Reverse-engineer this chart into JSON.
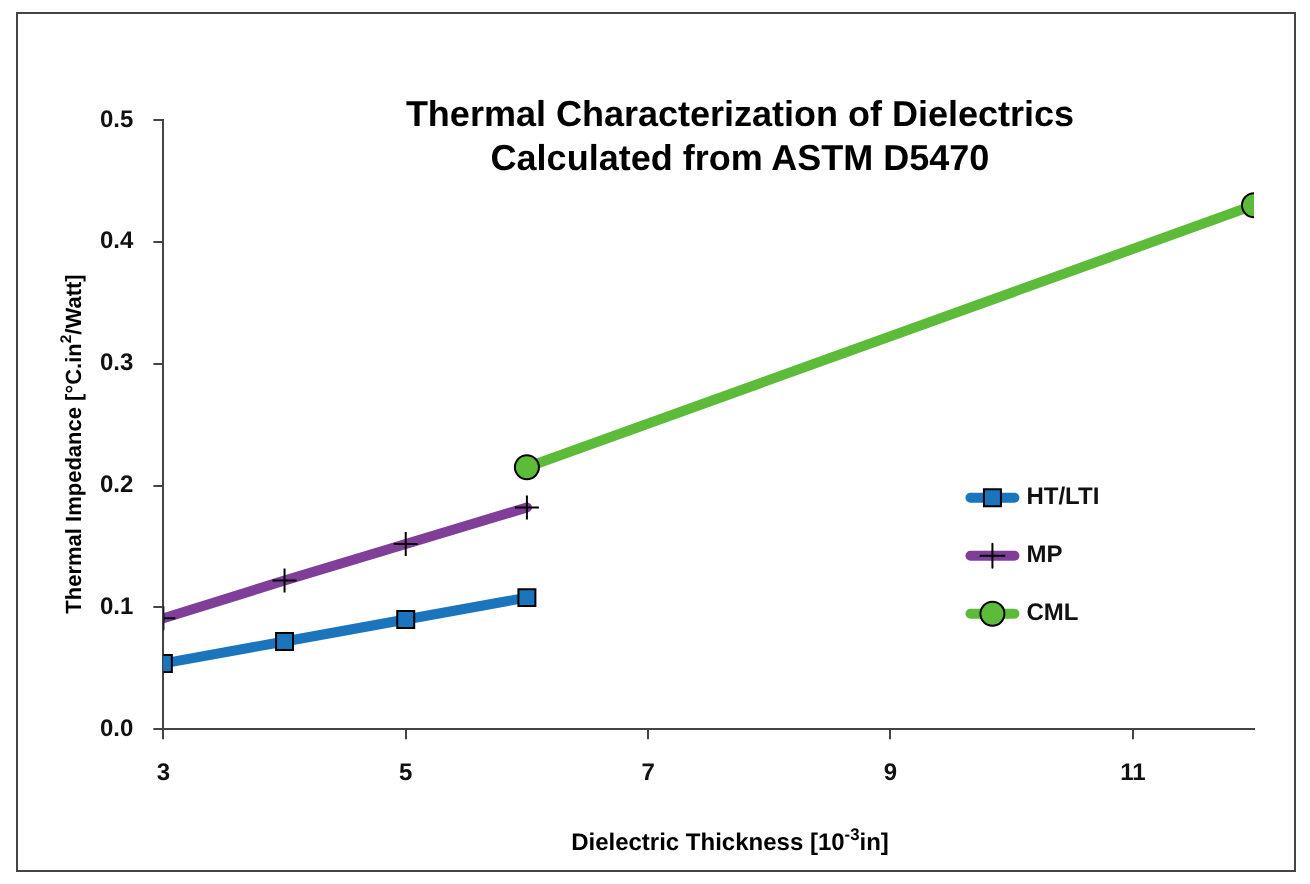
{
  "chart_data": {
    "type": "line",
    "title": "Thermal Characterization of Dielectrics\nCalculated from ASTM D5470",
    "xlabel": "Dielectric Thickness [10$^{-3}$in]",
    "ylabel": "Thermal Impedance [°C.in$^{2}$/Watt]",
    "xlim": [
      3,
      12
    ],
    "xticks": [
      3,
      5,
      7,
      9,
      11
    ],
    "ylim": [
      0,
      0.5
    ],
    "yticks": [
      {
        "value": 0,
        "label": "0.0"
      },
      0.1,
      0.2,
      0.3,
      0.4,
      0.5
    ],
    "grid": false,
    "legend": "right",
    "series": [
      {
        "name": "HT/LTI",
        "color": "#1a75bc",
        "marker": "square",
        "x": [
          3,
          4,
          5,
          6
        ],
        "values": [
          0.054,
          0.072,
          0.09,
          0.108
        ]
      },
      {
        "name": "MP",
        "color": "#7f3f98",
        "marker": "cross",
        "x": [
          3,
          4,
          5,
          6
        ],
        "values": [
          0.091,
          0.122,
          0.152,
          0.182
        ]
      },
      {
        "name": "CML",
        "color": "#5dbb3a",
        "marker": "circle",
        "x": [
          6,
          12
        ],
        "values": [
          0.215,
          0.43
        ]
      }
    ]
  }
}
